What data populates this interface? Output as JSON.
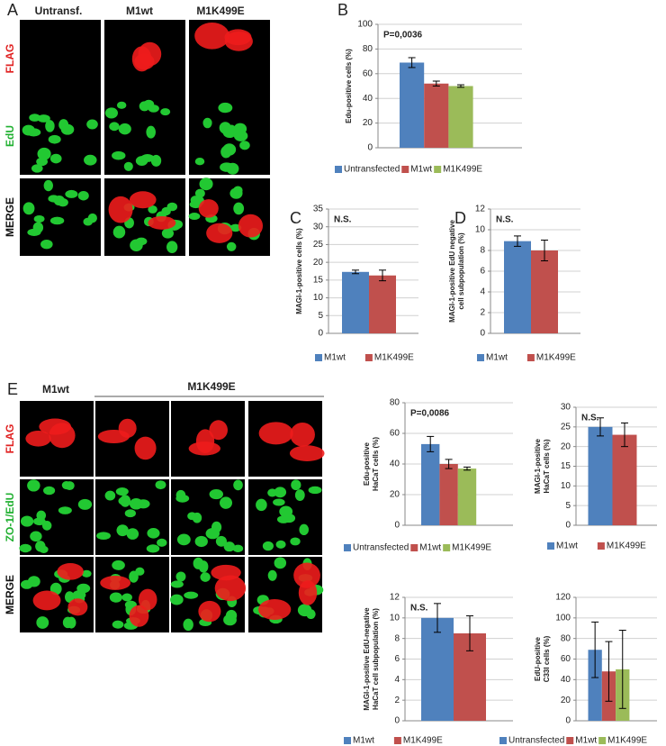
{
  "panel_a": {
    "letter": "A",
    "columns": [
      "Untransf.",
      "M1wt",
      "M1K499E"
    ],
    "rows": [
      "FLAG",
      "EdU",
      "MERGE"
    ]
  },
  "panel_e": {
    "letter": "E",
    "columns": [
      "M1wt",
      "M1K499E"
    ],
    "rows": [
      "FLAG",
      "ZO-1/EdU",
      "MERGE"
    ]
  },
  "chart_data": [
    {
      "type": "bar",
      "panel": "B",
      "ylabel": [
        "Edu-positive cells (%)"
      ],
      "annotation": "P=0,0036",
      "categories": [
        "Untransfected",
        "M1wt",
        "M1K499E"
      ],
      "colors": [
        "#4f81bd",
        "#c0504d",
        "#9bbb59"
      ],
      "values": [
        69,
        52,
        50
      ],
      "errors": [
        4,
        2,
        1
      ],
      "ylim": [
        0,
        100
      ],
      "yticks": [
        0,
        20,
        40,
        60,
        80,
        100
      ],
      "grid": true
    },
    {
      "type": "bar",
      "panel": "C",
      "ylabel": [
        "MAGI-1-positive cells (%)"
      ],
      "annotation": "N.S.",
      "categories": [
        "M1wt",
        "M1K499E"
      ],
      "colors": [
        "#4f81bd",
        "#c0504d"
      ],
      "values": [
        17.3,
        16.3
      ],
      "errors": [
        0.5,
        1.5
      ],
      "ylim": [
        0,
        35
      ],
      "yticks": [
        0,
        5,
        10,
        15,
        20,
        25,
        30,
        35
      ],
      "grid": true
    },
    {
      "type": "bar",
      "panel": "D",
      "ylabel": [
        "MAGI-1-positive EdU negative",
        "cell subpopulation (%)"
      ],
      "annotation": "N.S.",
      "categories": [
        "M1wt",
        "M1K499E"
      ],
      "colors": [
        "#4f81bd",
        "#c0504d"
      ],
      "values": [
        8.9,
        8.0
      ],
      "errors": [
        0.5,
        1.0
      ],
      "ylim": [
        0,
        12
      ],
      "yticks": [
        0,
        2,
        4,
        6,
        8,
        10,
        12
      ],
      "grid": true
    },
    {
      "type": "bar",
      "ylabel": [
        "Edu-positive",
        "HaCaT cells (%)"
      ],
      "annotation": "P=0,0086",
      "categories": [
        "Untransfected",
        "M1wt",
        "M1K499E"
      ],
      "colors": [
        "#4f81bd",
        "#c0504d",
        "#9bbb59"
      ],
      "values": [
        53,
        40,
        37
      ],
      "errors": [
        5,
        3,
        1
      ],
      "ylim": [
        0,
        80
      ],
      "yticks": [
        0,
        20,
        40,
        60,
        80
      ],
      "grid": true
    },
    {
      "type": "bar",
      "ylabel": [
        "MAGI-1-positive",
        "HaCaT cells (%)"
      ],
      "annotation": "N.S.",
      "categories": [
        "M1wt",
        "M1K499E"
      ],
      "colors": [
        "#4f81bd",
        "#c0504d"
      ],
      "values": [
        25,
        23
      ],
      "errors": [
        2.3,
        3
      ],
      "ylim": [
        0,
        30
      ],
      "yticks": [
        0,
        5,
        10,
        15,
        20,
        25,
        30
      ],
      "grid": true
    },
    {
      "type": "bar",
      "ylabel": [
        "MAGI-1-positive EdU-negative",
        "HaCaT cell  subpopulation (%)"
      ],
      "annotation": "N.S.",
      "categories": [
        "M1wt",
        "M1K499E"
      ],
      "colors": [
        "#4f81bd",
        "#c0504d"
      ],
      "values": [
        10,
        8.5
      ],
      "errors": [
        1.4,
        1.7
      ],
      "ylim": [
        0,
        12
      ],
      "yticks": [
        0,
        2,
        4,
        6,
        8,
        10,
        12
      ],
      "grid": true
    },
    {
      "type": "bar",
      "ylabel": [
        "EdU-positive",
        "C33I cells (%)"
      ],
      "categories": [
        "Untransfected",
        "M1wt",
        "M1K499E"
      ],
      "colors": [
        "#4f81bd",
        "#c0504d",
        "#9bbb59"
      ],
      "values": [
        69,
        48,
        50
      ],
      "errors": [
        27,
        29,
        38
      ],
      "ylim": [
        0,
        120
      ],
      "yticks": [
        0,
        20,
        40,
        60,
        80,
        100,
        120
      ],
      "grid": true
    }
  ]
}
